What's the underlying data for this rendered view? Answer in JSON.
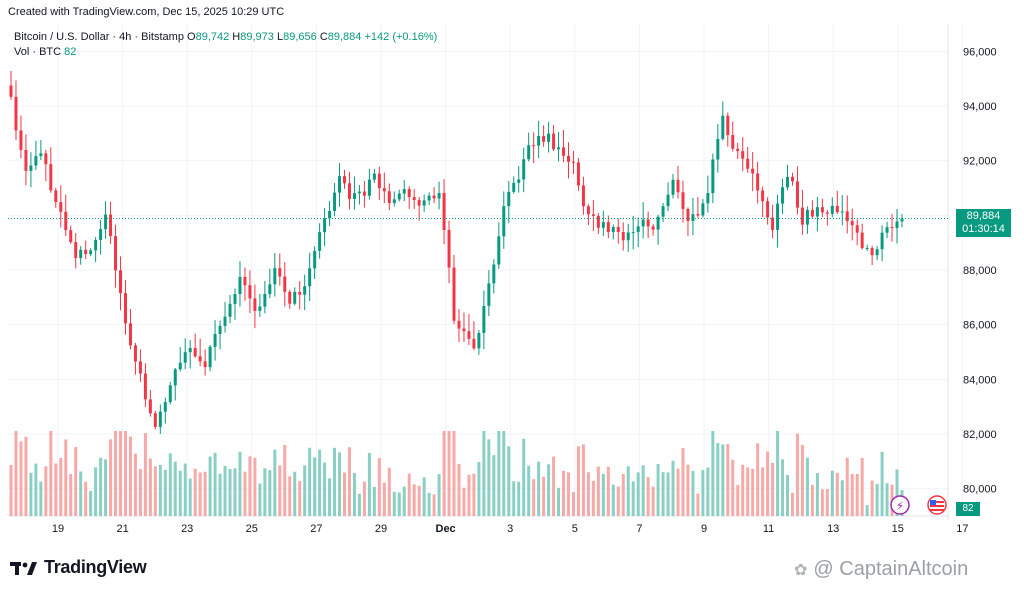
{
  "header": {
    "created": "Created with TradingView.com, Dec 15, 2025 10:29 UTC"
  },
  "legend": {
    "symbol": "Bitcoin / U.S. Dollar · 4h · Bitstamp",
    "open_label": "O",
    "open": "89,742",
    "high_label": "H",
    "high": "89,973",
    "low_label": "L",
    "low": "89,656",
    "close_label": "C",
    "close": "89,884",
    "change": "+142 (+0.16%)",
    "vol_label": "Vol · BTC",
    "vol_value": "82"
  },
  "price_tag": {
    "price": "89,884",
    "countdown": "01:30:14"
  },
  "vol_tag": "82",
  "brand": {
    "name": "TradingView"
  },
  "watermark": {
    "text": "@ CaptainAltcoin"
  },
  "colors": {
    "up": "#089981",
    "down": "#f23645",
    "up_vol": "#89cfc4",
    "down_vol": "#f7a9a7",
    "grid": "#f0f3fa"
  },
  "chart_data": {
    "type": "candlestick",
    "y_ticks": [
      "96,000",
      "94,000",
      "92,000",
      "90,000",
      "88,000",
      "86,000",
      "84,000",
      "82,000",
      "80,000"
    ],
    "x_ticks": [
      "19",
      "21",
      "23",
      "25",
      "27",
      "29",
      "Dec",
      "3",
      "5",
      "7",
      "9",
      "11",
      "13",
      "15",
      "17"
    ],
    "ylim": [
      79000,
      97000
    ],
    "last_price": 89884,
    "ohlc_keypoints": [
      95000,
      91500,
      92400,
      90500,
      88400,
      88800,
      90000,
      86200,
      84000,
      82300,
      84300,
      85200,
      84500,
      86500,
      87700,
      86300,
      88200,
      86900,
      87200,
      89800,
      91300,
      90600,
      91300,
      90500,
      90900,
      90300,
      91000,
      86300,
      85200,
      87400,
      90200,
      92000,
      93100,
      92600,
      91800,
      89800,
      89700,
      89300,
      89800,
      89300,
      91300,
      89600,
      90200,
      93500,
      92200,
      91500,
      89600,
      91600,
      89900,
      90300,
      90300,
      89500,
      88500,
      89700,
      89884
    ],
    "volume_max": 2000
  }
}
